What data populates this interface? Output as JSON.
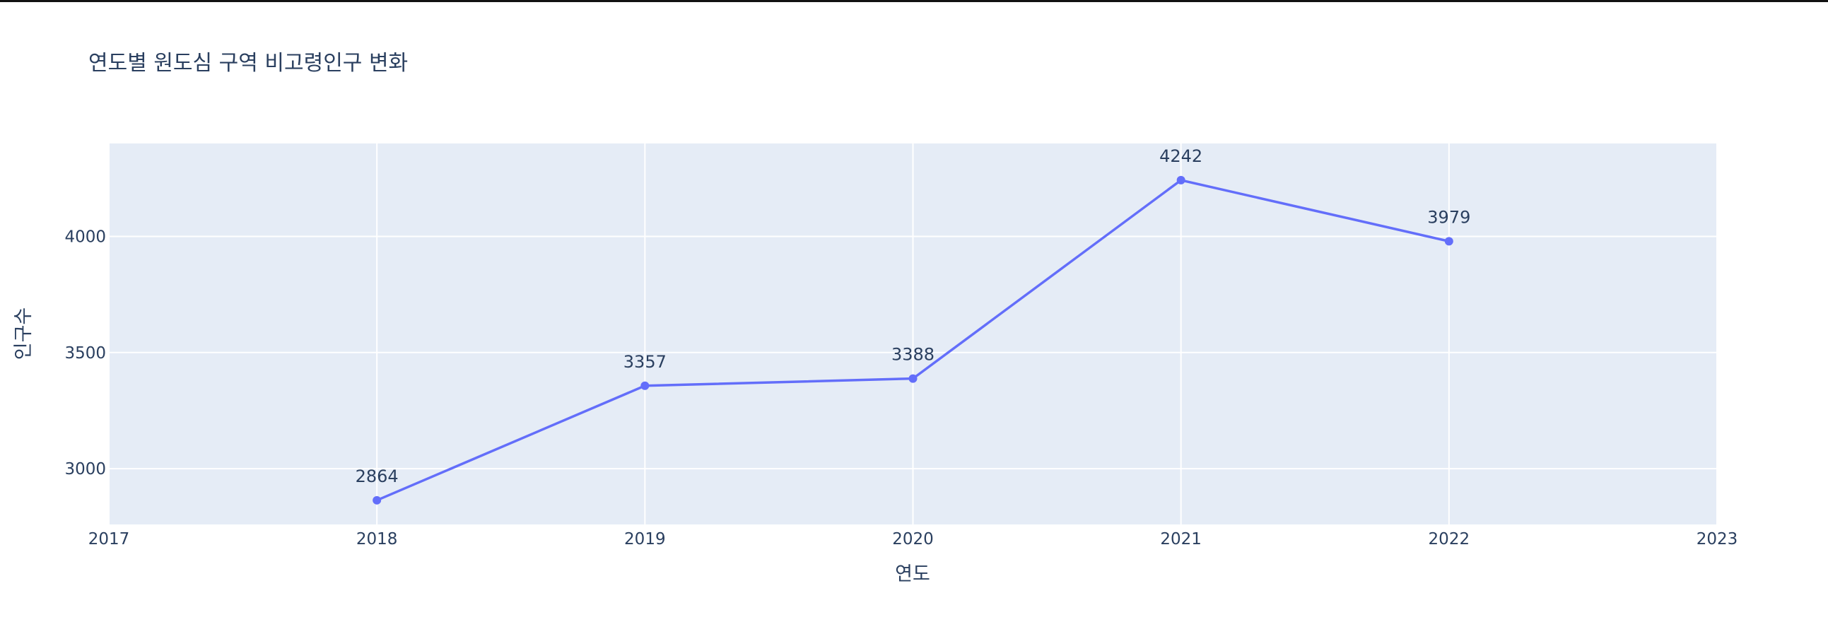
{
  "chart_data": {
    "type": "line",
    "title": "연도별 원도심 구역 비고령인구 변화",
    "xlabel": "연도",
    "ylabel": "인구수",
    "x": [
      2018,
      2019,
      2020,
      2021,
      2022
    ],
    "series": [
      {
        "values": [
          2864,
          3357,
          3388,
          4242,
          3979
        ]
      }
    ],
    "data_labels": [
      "2864",
      "3357",
      "3388",
      "4242",
      "3979"
    ],
    "xlim": [
      2017,
      2023
    ],
    "ylim": [
      2760,
      4400
    ],
    "x_ticks": [
      "2017",
      "2018",
      "2019",
      "2020",
      "2021",
      "2022",
      "2023"
    ],
    "y_ticks": [
      "3000",
      "3500",
      "4000"
    ],
    "grid": true,
    "legend": "none",
    "colors": {
      "line": "#636efa",
      "plot_bg": "#e5ecf6",
      "grid": "#ffffff",
      "text": "#2a3f5f"
    }
  }
}
